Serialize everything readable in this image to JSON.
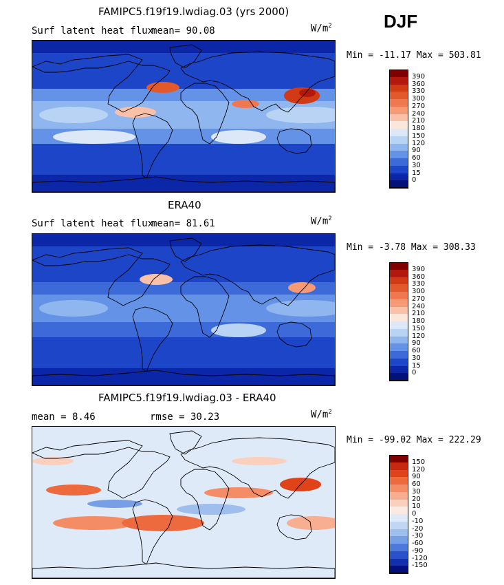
{
  "season": "DJF",
  "panels": [
    {
      "title": "FAMIPC5.f19f19.lwdiag.03 (yrs 2000)",
      "left_text": "Surf latent heat flux",
      "right_text": "mean=  90.08",
      "units": "W/m",
      "units_sup": "2",
      "minmax": "Min = -11.17 Max = 503.81",
      "colorbar": {
        "labels": [
          "390",
          "360",
          "330",
          "300",
          "270",
          "240",
          "210",
          "180",
          "150",
          "120",
          "90",
          "60",
          "30",
          "15",
          "0"
        ],
        "colors": [
          "#7f0000",
          "#b2180e",
          "#d03a14",
          "#e25a2c",
          "#f07850",
          "#f59a74",
          "#fac0a8",
          "#fbe6dc",
          "#dce8f8",
          "#b9d3f5",
          "#8fb6ef",
          "#6492e6",
          "#3c6ad9",
          "#1d45c8",
          "#0c26a8",
          "#03117a"
        ]
      },
      "field": "abs"
    },
    {
      "title": "ERA40",
      "left_text": "Surf latent heat flux",
      "right_text": "mean=  81.61",
      "units": "W/m",
      "units_sup": "2",
      "minmax": "Min =  -3.78 Max = 308.33",
      "colorbar": {
        "labels": [
          "390",
          "360",
          "330",
          "300",
          "270",
          "240",
          "210",
          "180",
          "150",
          "120",
          "90",
          "60",
          "30",
          "15",
          "0"
        ],
        "colors": [
          "#7f0000",
          "#b2180e",
          "#d03a14",
          "#e25a2c",
          "#f07850",
          "#f59a74",
          "#fac0a8",
          "#fbe6dc",
          "#dce8f8",
          "#b9d3f5",
          "#8fb6ef",
          "#6492e6",
          "#3c6ad9",
          "#1d45c8",
          "#0c26a8",
          "#03117a"
        ]
      },
      "field": "obs"
    },
    {
      "title": "FAMIPC5.f19f19.lwdiag.03 - ERA40",
      "left_text": "mean =   8.46",
      "right_text": "rmse =  30.23",
      "units": "W/m",
      "units_sup": "2",
      "minmax": "Min = -99.02 Max = 222.29",
      "colorbar": {
        "labels": [
          "150",
          "120",
          "90",
          "60",
          "30",
          "20",
          "10",
          "0",
          "-10",
          "-20",
          "-30",
          "-60",
          "-90",
          "-120",
          "-150"
        ],
        "colors": [
          "#7f0000",
          "#c62910",
          "#e0431a",
          "#ec6a3e",
          "#f48d66",
          "#f8ae90",
          "#fbcfbd",
          "#fbeae2",
          "#dfeaf8",
          "#c1d6f4",
          "#9ebeee",
          "#779fe6",
          "#4e78dc",
          "#2a50cb",
          "#1230ad",
          "#030f7c"
        ]
      },
      "field": "diff"
    }
  ]
}
